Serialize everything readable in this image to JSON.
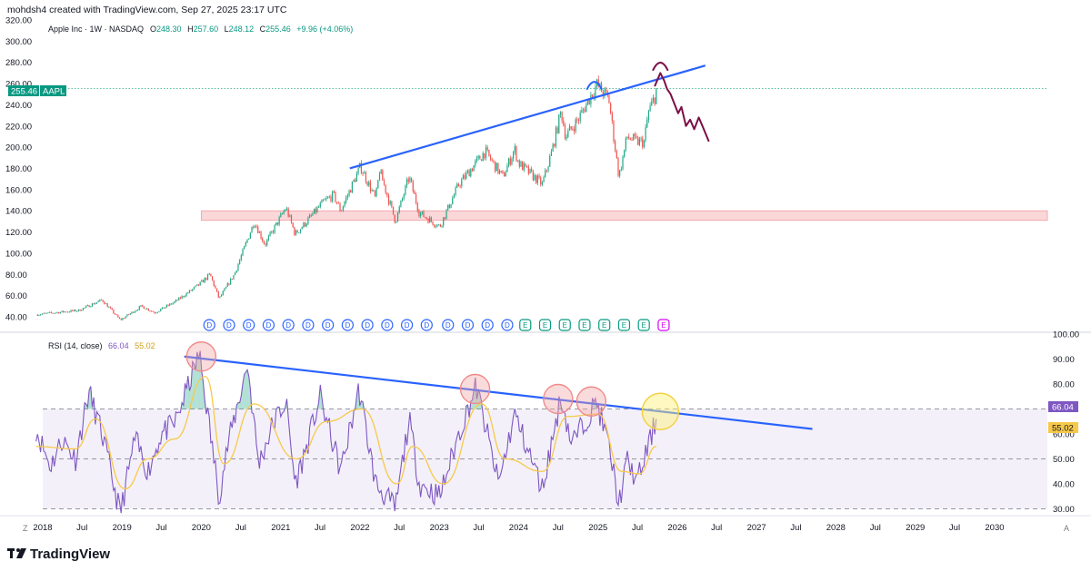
{
  "header": {
    "author_line": "mohdsh4 created with TradingView.com, Sep 27, 2025 23:17 UTC",
    "symbol_title": "Apple Inc · 1W · NASDAQ",
    "ohlc": {
      "o_label": "O",
      "o": "248.30",
      "h_label": "H",
      "h": "257.60",
      "l_label": "L",
      "l": "248.12",
      "c_label": "C",
      "c": "255.46",
      "change": "+9.96 (+4.06%)"
    }
  },
  "brand": {
    "name": "TradingView",
    "logo_text": "17"
  },
  "price_badge": {
    "value": "255.46",
    "ticker": "AAPL"
  },
  "rsi_header": {
    "label": "RSI (14, close)",
    "rsi_value": "66.04",
    "ma_value": "55.02"
  },
  "rsi_badges": {
    "rsi": "66.04",
    "ma": "55.02"
  },
  "axis_corner": {
    "left": "Z",
    "right": "A"
  },
  "colors": {
    "bull": "#22a884",
    "bear": "#ef5350",
    "trendline": "#2962ff",
    "drawing": "#7b0f46",
    "rsi_line": "#7e57c2",
    "rsi_ma": "#f7c948",
    "zone": "#f8c9cc",
    "dividend": "#2962ff",
    "earnings": "#089981"
  },
  "chart_data": [
    {
      "type": "candlestick",
      "title": "Apple Inc · 1W · NASDAQ",
      "yticks": [
        "40.00",
        "60.00",
        "80.00",
        "100.00",
        "120.00",
        "140.00",
        "160.00",
        "180.00",
        "200.00",
        "220.00",
        "240.00",
        "260.00",
        "280.00",
        "300.00",
        "320.00"
      ],
      "ylim": [
        28,
        320
      ],
      "xlim": [
        "2018-01-01",
        "2030-09-01"
      ],
      "xticks": [
        {
          "t": "2018-01-01",
          "label": "2018"
        },
        {
          "t": "2018-07-01",
          "label": "Jul"
        },
        {
          "t": "2019-01-01",
          "label": "2019"
        },
        {
          "t": "2019-07-01",
          "label": "Jul"
        },
        {
          "t": "2020-01-01",
          "label": "2020"
        },
        {
          "t": "2020-07-01",
          "label": "Jul"
        },
        {
          "t": "2021-01-01",
          "label": "2021"
        },
        {
          "t": "2021-07-01",
          "label": "Jul"
        },
        {
          "t": "2022-01-01",
          "label": "2022"
        },
        {
          "t": "2022-07-01",
          "label": "Jul"
        },
        {
          "t": "2023-01-01",
          "label": "2023"
        },
        {
          "t": "2023-07-01",
          "label": "Jul"
        },
        {
          "t": "2024-01-01",
          "label": "2024"
        },
        {
          "t": "2024-07-01",
          "label": "Jul"
        },
        {
          "t": "2025-01-01",
          "label": "2025"
        },
        {
          "t": "2025-07-01",
          "label": "Jul"
        },
        {
          "t": "2026-01-01",
          "label": "2026"
        },
        {
          "t": "2026-07-01",
          "label": "Jul"
        },
        {
          "t": "2027-01-01",
          "label": "2027"
        },
        {
          "t": "2027-07-01",
          "label": "Jul"
        },
        {
          "t": "2028-01-01",
          "label": "2028"
        },
        {
          "t": "2028-07-01",
          "label": "Jul"
        },
        {
          "t": "2029-01-01",
          "label": "2029"
        },
        {
          "t": "2029-07-01",
          "label": "Jul"
        },
        {
          "t": "2030-01-01",
          "label": "2030"
        }
      ],
      "price_path": [
        [
          "2017-12-01",
          42
        ],
        [
          "2018-03-01",
          44
        ],
        [
          "2018-06-15",
          46
        ],
        [
          "2018-10-01",
          56
        ],
        [
          "2018-12-24",
          37
        ],
        [
          "2019-04-01",
          50
        ],
        [
          "2019-06-01",
          44
        ],
        [
          "2019-09-01",
          54
        ],
        [
          "2019-12-20",
          70
        ],
        [
          "2020-02-10",
          80
        ],
        [
          "2020-03-23",
          57
        ],
        [
          "2020-06-01",
          80
        ],
        [
          "2020-09-01",
          130
        ],
        [
          "2020-10-20",
          108
        ],
        [
          "2021-01-25",
          143
        ],
        [
          "2021-03-08",
          118
        ],
        [
          "2021-05-01",
          130
        ],
        [
          "2021-07-15",
          148
        ],
        [
          "2021-09-01",
          155
        ],
        [
          "2021-10-04",
          140
        ],
        [
          "2022-01-03",
          182
        ],
        [
          "2022-03-14",
          151
        ],
        [
          "2022-04-01",
          178
        ],
        [
          "2022-06-13",
          130
        ],
        [
          "2022-08-15",
          172
        ],
        [
          "2022-10-01",
          138
        ],
        [
          "2023-01-03",
          125
        ],
        [
          "2023-04-01",
          165
        ],
        [
          "2023-07-31",
          196
        ],
        [
          "2023-10-20",
          172
        ],
        [
          "2023-12-14",
          198
        ],
        [
          "2024-01-01",
          185
        ],
        [
          "2024-04-19",
          165
        ],
        [
          "2024-06-01",
          195
        ],
        [
          "2024-07-15",
          234
        ],
        [
          "2024-08-05",
          210
        ],
        [
          "2024-10-01",
          226
        ],
        [
          "2024-12-26",
          259
        ],
        [
          "2025-02-20",
          245
        ],
        [
          "2025-04-07",
          172
        ],
        [
          "2025-05-15",
          210
        ],
        [
          "2025-06-30",
          205
        ],
        [
          "2025-08-01",
          205
        ],
        [
          "2025-08-20",
          232
        ],
        [
          "2025-09-20",
          248
        ],
        [
          "2025-09-26",
          255.46
        ]
      ],
      "last_price": 255.46,
      "last_time": "2025-09-26",
      "support_zone": {
        "start": "2020-01-01",
        "end": "2030-09-01",
        "low": 131,
        "high": 140
      },
      "trendline": {
        "start": [
          "2021-11-15",
          180
        ],
        "end": [
          "2026-05-10",
          277
        ]
      },
      "projection_path": [
        [
          "2025-09-20",
          258
        ],
        [
          "2025-10-15",
          270
        ],
        [
          "2025-11-01",
          263
        ],
        [
          "2025-11-15",
          255
        ],
        [
          "2025-12-01",
          250
        ],
        [
          "2026-01-05",
          232
        ],
        [
          "2026-01-20",
          238
        ],
        [
          "2026-02-10",
          220
        ],
        [
          "2026-03-01",
          226
        ],
        [
          "2026-03-20",
          217
        ],
        [
          "2026-04-10",
          228
        ],
        [
          "2026-05-01",
          218
        ],
        [
          "2026-05-25",
          206
        ]
      ],
      "arc_markers": [
        {
          "t": "2024-12-15",
          "price": 260,
          "color": "#2962ff"
        },
        {
          "t": "2025-10-15",
          "price": 278,
          "color": "#7b0f46"
        }
      ],
      "dividends": [
        "2020-02-07",
        "2020-05-08",
        "2020-08-07",
        "2020-11-06",
        "2021-02-05",
        "2021-05-07",
        "2021-08-06",
        "2021-11-05",
        "2022-02-04",
        "2022-05-06",
        "2022-08-05",
        "2022-11-04",
        "2023-02-10",
        "2023-05-12",
        "2023-08-11",
        "2023-11-10"
      ],
      "earnings": [
        "2024-02-01",
        "2024-05-02",
        "2024-08-01",
        "2024-10-31",
        "2025-01-30",
        "2025-05-01",
        "2025-07-31"
      ],
      "next_earnings": "2025-10-30",
      "dividend_glyph": "D",
      "earnings_glyph": "E"
    },
    {
      "type": "line",
      "title": "RSI (14, close)",
      "yticks": [
        "30.00",
        "40.00",
        "50.00",
        "60.00",
        "70.00",
        "80.00",
        "90.00",
        "100.00"
      ],
      "ylim": [
        28,
        100
      ],
      "bands": {
        "upper": 70,
        "middle": 50,
        "lower": 30
      },
      "series": [
        {
          "name": "RSI",
          "values": [
            [
              "2017-12-01",
              62
            ],
            [
              "2018-02-05",
              47
            ],
            [
              "2018-04-01",
              58
            ],
            [
              "2018-06-01",
              50
            ],
            [
              "2018-08-01",
              77
            ],
            [
              "2018-10-01",
              60
            ],
            [
              "2018-12-24",
              28
            ],
            [
              "2019-03-01",
              58
            ],
            [
              "2019-05-01",
              45
            ],
            [
              "2019-07-01",
              60
            ],
            [
              "2019-09-01",
              64
            ],
            [
              "2019-12-23",
              92
            ],
            [
              "2020-03-23",
              35
            ],
            [
              "2020-05-01",
              55
            ],
            [
              "2020-08-01",
              88
            ],
            [
              "2020-09-21",
              48
            ],
            [
              "2020-12-01",
              65
            ],
            [
              "2021-01-25",
              73
            ],
            [
              "2021-03-08",
              40
            ],
            [
              "2021-05-01",
              55
            ],
            [
              "2021-07-01",
              75
            ],
            [
              "2021-10-04",
              45
            ],
            [
              "2021-12-27",
              78
            ],
            [
              "2022-03-14",
              40
            ],
            [
              "2022-06-13",
              30
            ],
            [
              "2022-08-15",
              66
            ],
            [
              "2022-10-01",
              40
            ],
            [
              "2023-01-03",
              35
            ],
            [
              "2023-04-01",
              60
            ],
            [
              "2023-06-20",
              79
            ],
            [
              "2023-10-01",
              40
            ],
            [
              "2023-12-14",
              68
            ],
            [
              "2024-04-19",
              38
            ],
            [
              "2024-07-15",
              75
            ],
            [
              "2024-09-01",
              56
            ],
            [
              "2024-12-26",
              73
            ],
            [
              "2025-02-20",
              55
            ],
            [
              "2025-04-07",
              32
            ],
            [
              "2025-05-15",
              49
            ],
            [
              "2025-07-01",
              41
            ],
            [
              "2025-08-20",
              55
            ],
            [
              "2025-09-26",
              66.04
            ]
          ]
        },
        {
          "name": "MA",
          "values": [
            [
              "2017-12-01",
              55
            ],
            [
              "2018-06-01",
              54
            ],
            [
              "2018-09-01",
              66
            ],
            [
              "2019-01-15",
              38
            ],
            [
              "2019-05-01",
              50
            ],
            [
              "2019-09-01",
              58
            ],
            [
              "2020-01-20",
              83
            ],
            [
              "2020-04-15",
              48
            ],
            [
              "2020-09-01",
              72
            ],
            [
              "2021-03-15",
              50
            ],
            [
              "2021-08-01",
              65
            ],
            [
              "2022-01-10",
              70
            ],
            [
              "2022-06-20",
              40
            ],
            [
              "2022-09-01",
              55
            ],
            [
              "2023-01-20",
              40
            ],
            [
              "2023-07-15",
              72
            ],
            [
              "2023-11-01",
              50
            ],
            [
              "2024-04-20",
              45
            ],
            [
              "2024-08-15",
              67
            ],
            [
              "2025-01-01",
              68
            ],
            [
              "2025-04-20",
              45
            ],
            [
              "2025-07-10",
              44
            ],
            [
              "2025-09-26",
              55.02
            ]
          ]
        }
      ],
      "trendline": {
        "start": [
          "2019-10-15",
          91
        ],
        "end": [
          "2027-09-15",
          62
        ]
      },
      "highlight_circles": [
        {
          "t": "2020-01-01",
          "rsi": 91,
          "color": "#f3a6a6"
        },
        {
          "t": "2023-06-15",
          "rsi": 78,
          "color": "#f3a6a6"
        },
        {
          "t": "2024-07-01",
          "rsi": 74,
          "color": "#f3a6a6"
        },
        {
          "t": "2024-12-01",
          "rsi": 73,
          "color": "#f3a6a6"
        },
        {
          "t": "2025-10-15",
          "rsi": 69,
          "color": "#fff176"
        }
      ]
    }
  ]
}
